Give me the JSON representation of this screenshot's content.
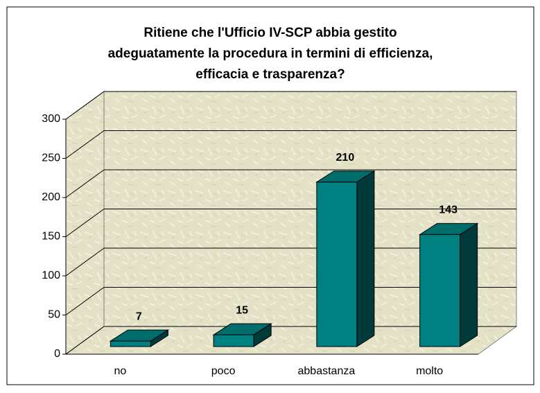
{
  "chart_data": {
    "type": "bar",
    "title": [
      "Ritiene che l'Ufficio IV-SCP abbia gestito",
      "adeguatamente la procedura in termini di efficienza,",
      "efficacia e trasparenza?"
    ],
    "categories": [
      "no",
      "poco",
      "abbastanza",
      "molto"
    ],
    "values": [
      7,
      15,
      210,
      143
    ],
    "color": "#008080",
    "ylim": [
      0,
      300
    ],
    "yticks": [
      0,
      50,
      100,
      150,
      200,
      250,
      300
    ],
    "grid": true
  }
}
